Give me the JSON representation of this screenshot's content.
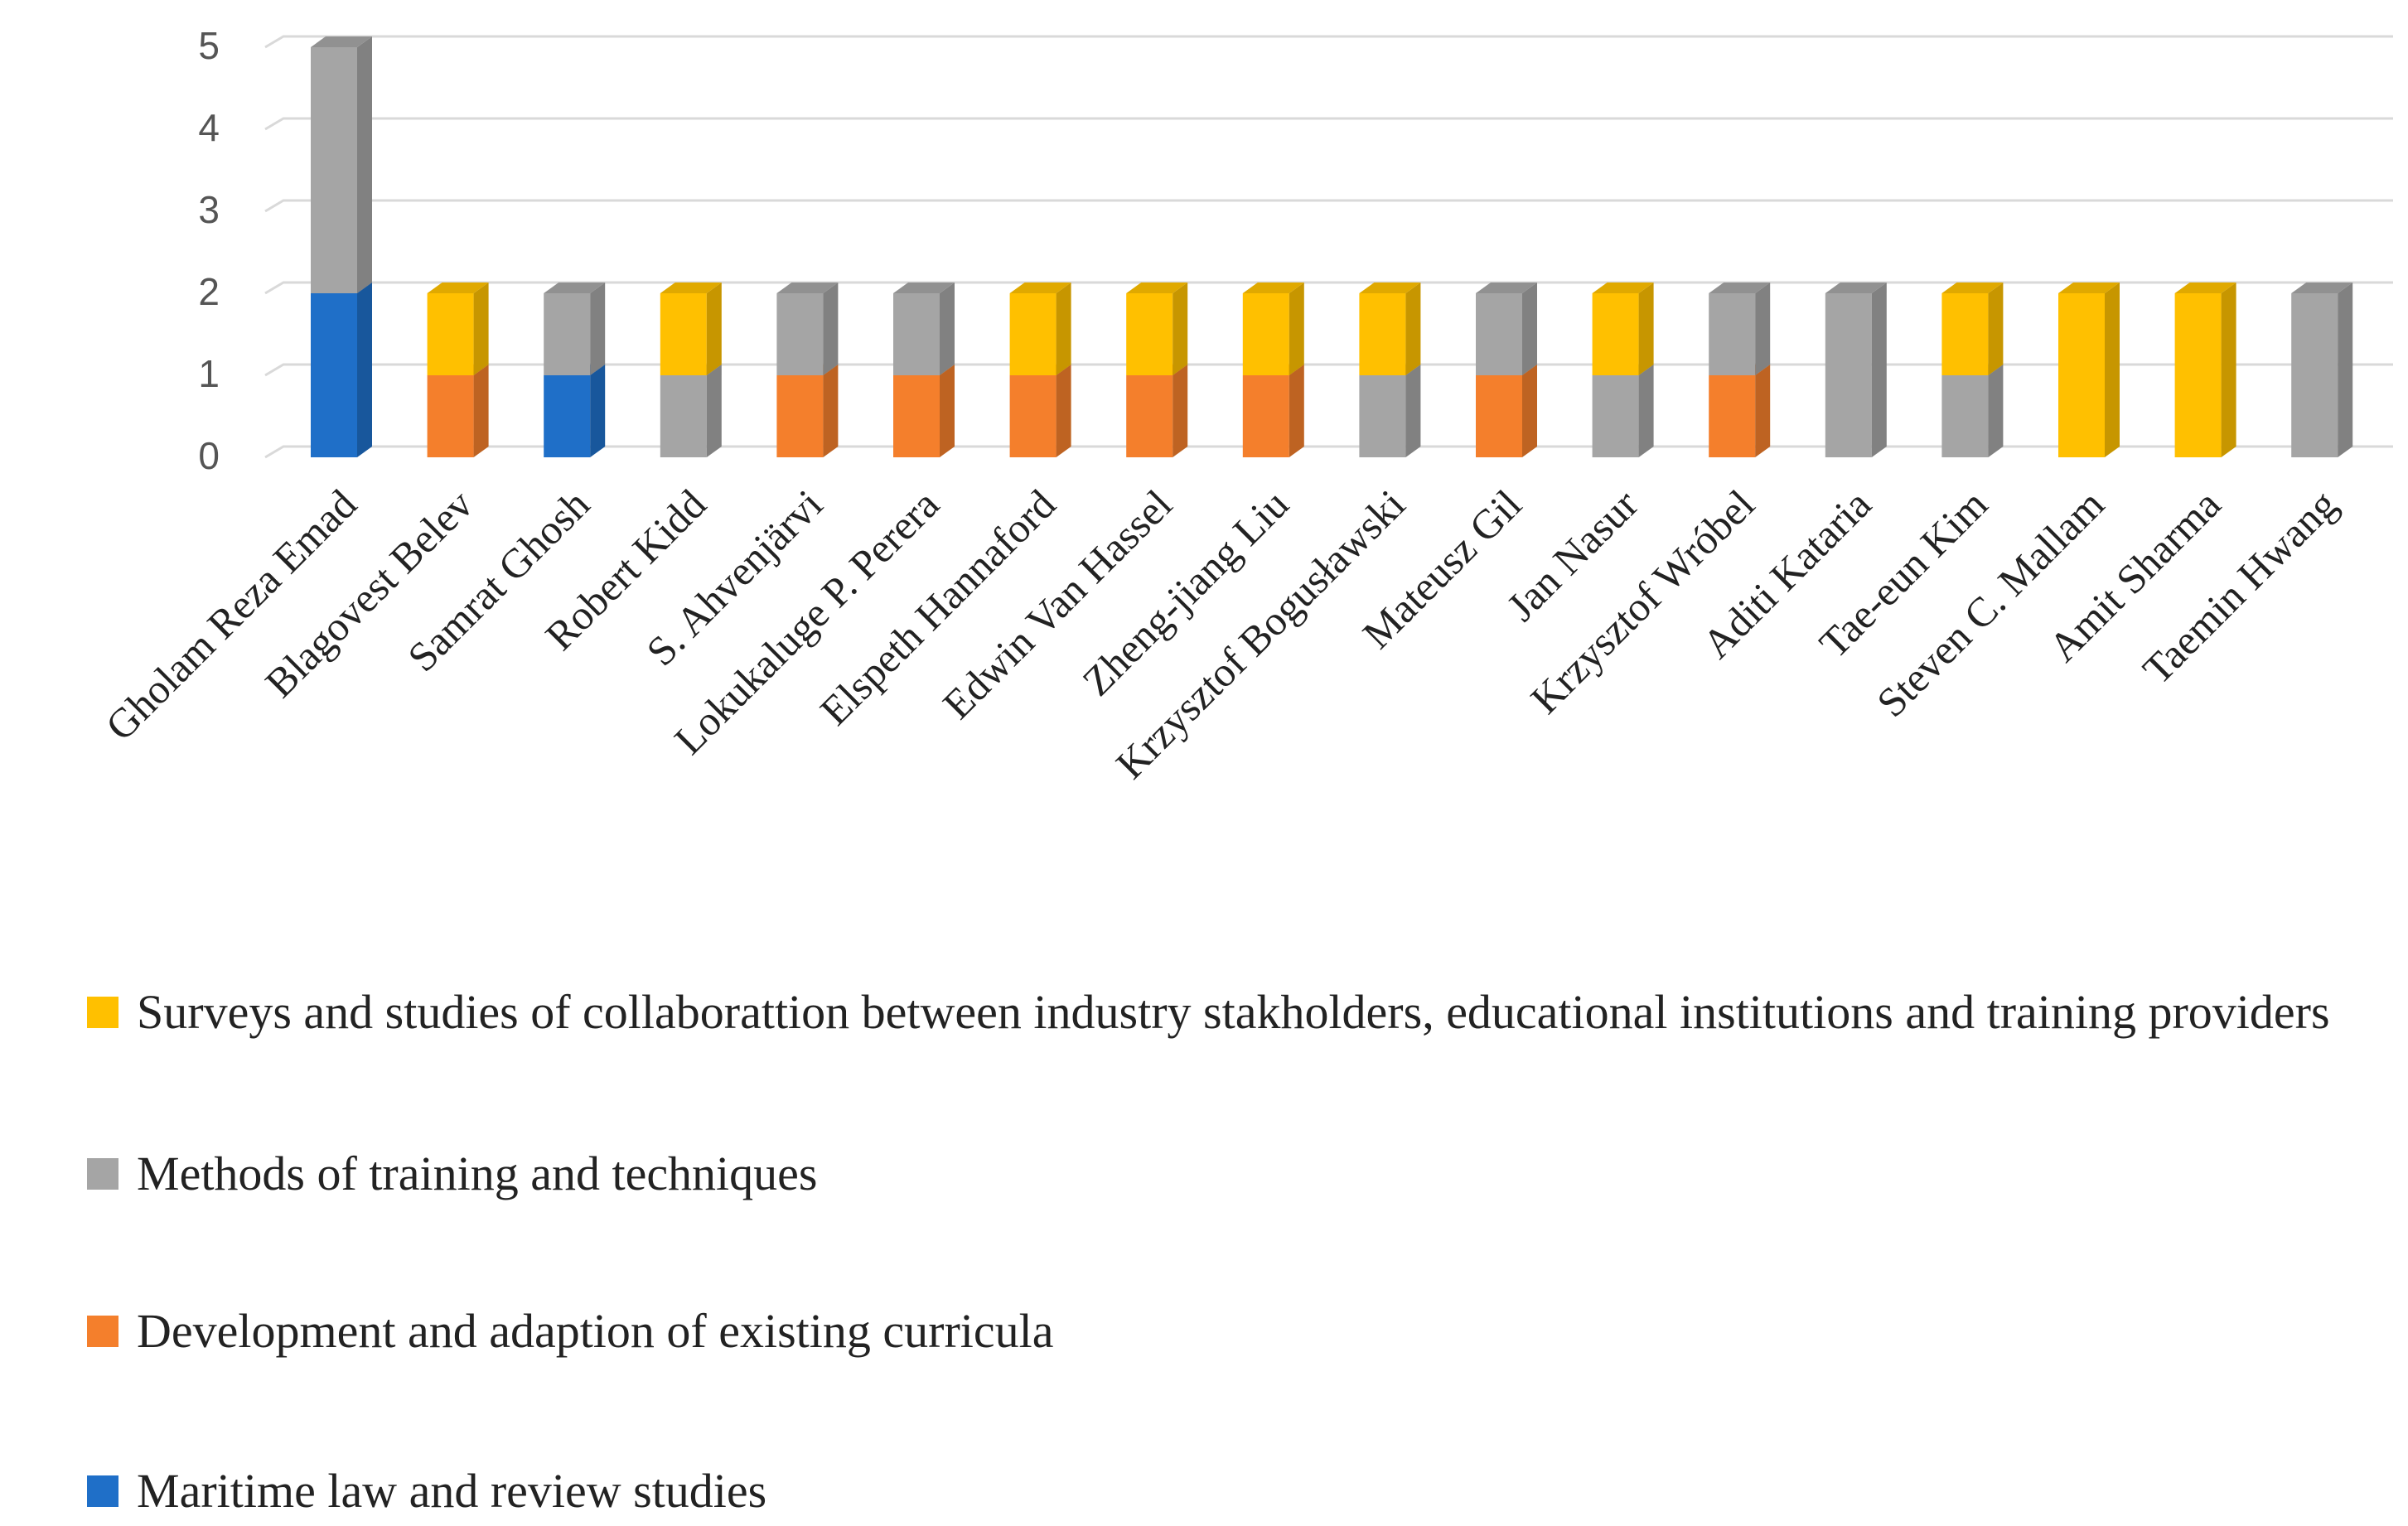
{
  "chart_data": {
    "type": "bar",
    "stacked": true,
    "three_d": true,
    "categories": [
      "Gholam Reza Emad",
      "Blagovest Belev",
      "Samrat Ghosh",
      "Robert Kidd",
      "S. Ahvenjärvi",
      "Lokukaluge P. Perera",
      "Elspeth Hannaford",
      "Edwin Van Hassel",
      "Zheng-jiang Liu",
      "Krzysztof Bogusławski",
      "Mateusz Gil",
      "Jan Nasur",
      "Krzysztof Wróbel",
      "Aditi Kataria",
      "Tae-eun Kim",
      "Steven C. Mallam",
      "Amit Sharma",
      "Taemin Hwang"
    ],
    "series": [
      {
        "name": "Maritime law and review studies",
        "color": "#1f6fc8",
        "values": [
          2,
          0,
          1,
          0,
          0,
          0,
          0,
          0,
          0,
          0,
          0,
          0,
          0,
          0,
          0,
          0,
          0,
          0
        ]
      },
      {
        "name": "Development and adaption of existing curricula",
        "color": "#f47f2c",
        "values": [
          0,
          1,
          0,
          0,
          1,
          1,
          1,
          1,
          1,
          0,
          1,
          0,
          1,
          0,
          0,
          0,
          0,
          0
        ]
      },
      {
        "name": " Methods of training and techniques",
        "color": "#a5a5a5",
        "values": [
          3,
          0,
          1,
          1,
          1,
          1,
          0,
          0,
          0,
          1,
          1,
          1,
          1,
          2,
          1,
          0,
          0,
          2
        ]
      },
      {
        "name": "Surveys and studies of collaborattion between industry stakholders, educational institutions and training providers",
        "color": "#ffc000",
        "values": [
          0,
          1,
          0,
          1,
          0,
          0,
          1,
          1,
          1,
          1,
          0,
          1,
          0,
          0,
          1,
          2,
          2,
          0
        ]
      }
    ],
    "yticks": [
      0,
      1,
      2,
      3,
      4,
      5
    ],
    "ylim": [
      0,
      5
    ],
    "grid": true,
    "legend_position": "bottom"
  }
}
